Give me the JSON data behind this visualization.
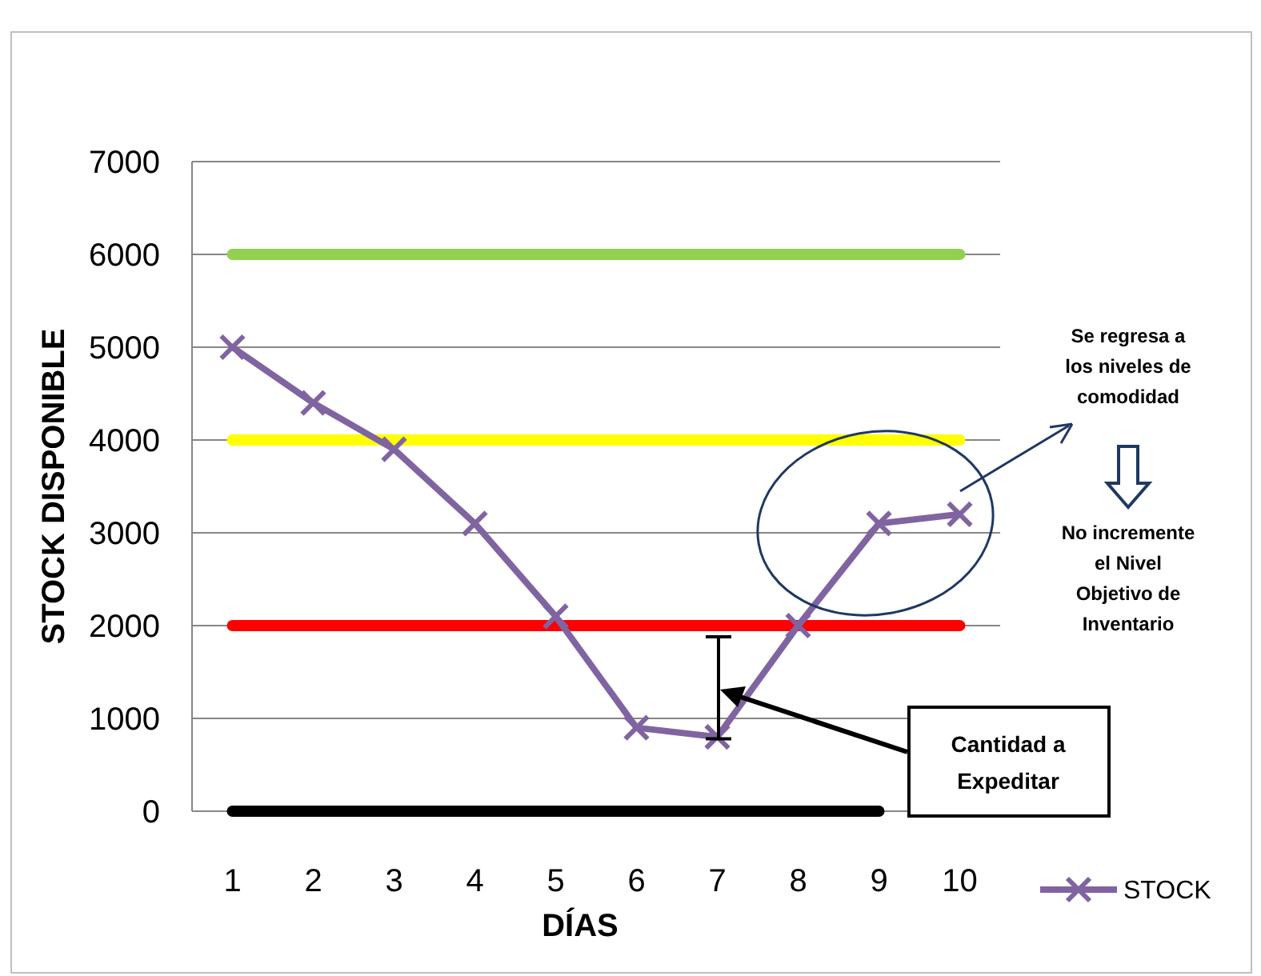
{
  "chart_data": {
    "type": "line",
    "xlabel": "DÍAS",
    "ylabel": "STOCK DISPONIBLE",
    "categories": [
      "1",
      "2",
      "3",
      "4",
      "5",
      "6",
      "7",
      "8",
      "9",
      "10"
    ],
    "series": [
      {
        "color": "#92d050",
        "values": [
          6000,
          6000,
          6000,
          6000,
          6000,
          6000,
          6000,
          6000,
          6000,
          6000
        ],
        "marker": "none"
      },
      {
        "color": "#ffff00",
        "values": [
          4000,
          4000,
          4000,
          4000,
          4000,
          4000,
          4000,
          4000,
          4000,
          4000
        ],
        "marker": "none"
      },
      {
        "color": "#ff0000",
        "values": [
          2000,
          2000,
          2000,
          2000,
          2000,
          2000,
          2000,
          2000,
          2000,
          2000
        ],
        "marker": "none"
      },
      {
        "color": "#000000",
        "values": [
          0,
          0,
          0,
          0,
          0,
          0,
          0,
          0,
          0,
          null
        ],
        "marker": "none"
      },
      {
        "name": "STOCK",
        "color": "#8064a2",
        "values": [
          5000,
          4400,
          3900,
          3100,
          2100,
          900,
          800,
          2000,
          3100,
          3200
        ],
        "marker": "cross"
      }
    ],
    "ylim": [
      0,
      7000
    ],
    "yticks": [
      0,
      1000,
      2000,
      3000,
      4000,
      5000,
      6000,
      7000
    ],
    "grid": "y",
    "legend": "bottom right",
    "annotations": [
      "Se regresa a los niveles de comodidad",
      "No incremente el Nivel Objetivo de Inventario",
      "Cantidad a Expeditar"
    ]
  }
}
